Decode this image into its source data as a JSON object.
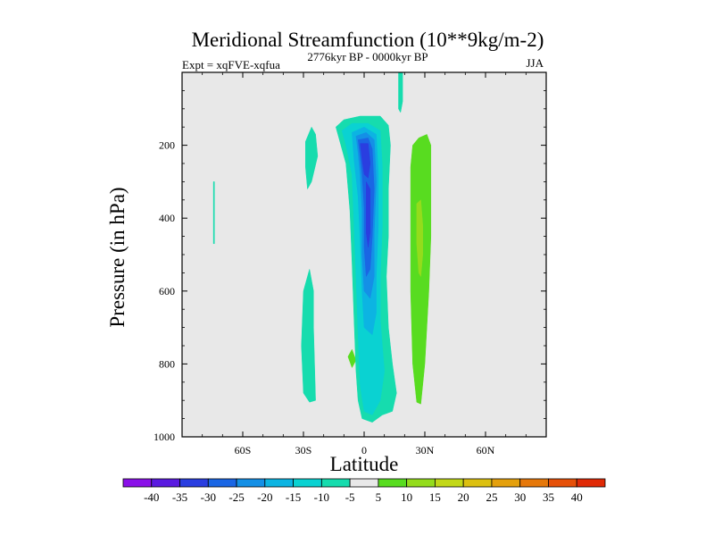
{
  "chart_data": {
    "type": "contour",
    "title": "Meridional Streamfunction (10**9kg/m-2)",
    "left_string": "Expt = xqFVE-xqfua",
    "center_string": "2776kyr BP - 0000kyr BP",
    "right_string": "JJA",
    "xlabel": "Latitude",
    "ylabel": "Pressure (in hPa)",
    "x_range": [
      -90,
      90
    ],
    "y_range": [
      0,
      1000
    ],
    "y_reversed": true,
    "x_ticks": [
      {
        "value": -60,
        "label": "60S"
      },
      {
        "value": -30,
        "label": "30S"
      },
      {
        "value": 0,
        "label": "0"
      },
      {
        "value": 30,
        "label": "30N"
      },
      {
        "value": 60,
        "label": "60N"
      }
    ],
    "y_ticks": [
      {
        "value": 200,
        "label": "200"
      },
      {
        "value": 400,
        "label": "400"
      },
      {
        "value": 600,
        "label": "600"
      },
      {
        "value": 800,
        "label": "800"
      },
      {
        "value": 1000,
        "label": "1000"
      }
    ],
    "background_color": "#e8e8e8",
    "colorbar": {
      "levels": [
        "-40",
        "-35",
        "-30",
        "-25",
        "-20",
        "-15",
        "-10",
        "-5",
        "5",
        "10",
        "15",
        "20",
        "25",
        "30",
        "35",
        "40"
      ],
      "colors": [
        "#8a10e8",
        "#5a1ae0",
        "#2a3ee0",
        "#1a66e4",
        "#1490e6",
        "#0cb4e2",
        "#0ad2d2",
        "#16dcae",
        "#e8e8e8",
        "#58dc20",
        "#94dc1c",
        "#c2d818",
        "#dcc010",
        "#e4a00c",
        "#e6780a",
        "#e65008",
        "#e02a06"
      ]
    },
    "regions": [
      {
        "name": "contour-vertical-streak-65s",
        "color": "#16dcae",
        "points": [
          [
            -74.5,
            300
          ],
          [
            -74,
            300
          ],
          [
            -74,
            470
          ],
          [
            -74.5,
            470
          ]
        ]
      },
      {
        "name": "contour-upper-patch-27s",
        "color": "#16dcae",
        "points": [
          [
            -29,
            190
          ],
          [
            -26,
            150
          ],
          [
            -24,
            170
          ],
          [
            -23,
            230
          ],
          [
            -26,
            300
          ],
          [
            -28,
            320
          ],
          [
            -29,
            260
          ]
        ]
      },
      {
        "name": "contour-lower-patch-28s",
        "color": "#16dcae",
        "points": [
          [
            -30,
            600
          ],
          [
            -27,
            540
          ],
          [
            -25,
            600
          ],
          [
            -25,
            700
          ],
          [
            -24,
            900
          ],
          [
            -27,
            905
          ],
          [
            -30,
            880
          ],
          [
            -31,
            750
          ]
        ]
      },
      {
        "name": "contour-small-patch-5s",
        "color": "#58dc20",
        "points": [
          [
            -8,
            780
          ],
          [
            -6,
            760
          ],
          [
            -4,
            790
          ],
          [
            -6,
            810
          ]
        ]
      },
      {
        "name": "contour-outer-tropics",
        "color": "#16dcae",
        "points": [
          [
            -14,
            150
          ],
          [
            -10,
            130
          ],
          [
            -2,
            120
          ],
          [
            8,
            120
          ],
          [
            12,
            145
          ],
          [
            13,
            200
          ],
          [
            12,
            320
          ],
          [
            12,
            450
          ],
          [
            11,
            560
          ],
          [
            12,
            700
          ],
          [
            14,
            800
          ],
          [
            16,
            880
          ],
          [
            14,
            930
          ],
          [
            9,
            940
          ],
          [
            4,
            960
          ],
          [
            -1,
            950
          ],
          [
            -3,
            900
          ],
          [
            -4,
            820
          ],
          [
            -5,
            680
          ],
          [
            -6,
            520
          ],
          [
            -7,
            380
          ],
          [
            -9,
            250
          ]
        ]
      },
      {
        "name": "contour-tropics-10",
        "color": "#0ad2d2",
        "points": [
          [
            -11,
            160
          ],
          [
            -6,
            140
          ],
          [
            2,
            140
          ],
          [
            8,
            160
          ],
          [
            9,
            260
          ],
          [
            9,
            420
          ],
          [
            8,
            560
          ],
          [
            8,
            680
          ],
          [
            10,
            820
          ],
          [
            8,
            900
          ],
          [
            4,
            940
          ],
          [
            0,
            930
          ],
          [
            -2,
            860
          ],
          [
            -3,
            720
          ],
          [
            -4,
            560
          ],
          [
            -5,
            420
          ],
          [
            -6,
            280
          ],
          [
            -9,
            200
          ]
        ]
      },
      {
        "name": "contour-tropics-15",
        "color": "#0cb4e2",
        "points": [
          [
            -6,
            165
          ],
          [
            0,
            150
          ],
          [
            6,
            170
          ],
          [
            7,
            280
          ],
          [
            7,
            420
          ],
          [
            6,
            560
          ],
          [
            6,
            660
          ],
          [
            4,
            720
          ],
          [
            0,
            700
          ],
          [
            -1,
            600
          ],
          [
            -2,
            460
          ],
          [
            -3,
            340
          ],
          [
            -5,
            240
          ]
        ]
      },
      {
        "name": "contour-tropics-20",
        "color": "#1490e6",
        "points": [
          [
            -4,
            175
          ],
          [
            1,
            165
          ],
          [
            5,
            185
          ],
          [
            6,
            300
          ],
          [
            5,
            440
          ],
          [
            5,
            560
          ],
          [
            3,
            620
          ],
          [
            0,
            600
          ],
          [
            -1,
            500
          ],
          [
            -1,
            380
          ],
          [
            -2,
            280
          ],
          [
            -3,
            220
          ]
        ]
      },
      {
        "name": "contour-tropics-25",
        "color": "#1a66e4",
        "points": [
          [
            -3,
            185
          ],
          [
            2,
            180
          ],
          [
            4,
            210
          ],
          [
            5,
            320
          ],
          [
            4,
            450
          ],
          [
            3,
            540
          ],
          [
            1,
            560
          ],
          [
            0,
            480
          ],
          [
            0,
            370
          ],
          [
            -1,
            280
          ],
          [
            -2,
            230
          ]
        ]
      },
      {
        "name": "contour-tropics-30",
        "color": "#2a3ee0",
        "points": [
          [
            -2,
            195
          ],
          [
            2,
            195
          ],
          [
            3,
            250
          ],
          [
            2,
            290
          ],
          [
            0,
            280
          ],
          [
            -1,
            240
          ]
        ]
      },
      {
        "name": "contour-core-min-30",
        "color": "#2a3ee0",
        "points": [
          [
            1,
            300
          ],
          [
            3,
            320
          ],
          [
            3,
            440
          ],
          [
            2,
            480
          ],
          [
            1,
            440
          ],
          [
            1,
            360
          ]
        ]
      },
      {
        "name": "contour-top-streak-15n",
        "color": "#16dcae",
        "points": [
          [
            17,
            0
          ],
          [
            19,
            0
          ],
          [
            19,
            80
          ],
          [
            18,
            110
          ],
          [
            17,
            100
          ]
        ]
      },
      {
        "name": "contour-green-band-27n",
        "color": "#58dc20",
        "points": [
          [
            24,
            200
          ],
          [
            27,
            180
          ],
          [
            31,
            170
          ],
          [
            33,
            200
          ],
          [
            33,
            300
          ],
          [
            33,
            450
          ],
          [
            32,
            600
          ],
          [
            30,
            800
          ],
          [
            28,
            910
          ],
          [
            26,
            905
          ],
          [
            24,
            800
          ],
          [
            23,
            600
          ],
          [
            23,
            400
          ],
          [
            23,
            260
          ]
        ]
      },
      {
        "name": "contour-green-core-27n",
        "color": "#94dc1c",
        "points": [
          [
            26,
            360
          ],
          [
            28,
            350
          ],
          [
            29,
            420
          ],
          [
            29,
            500
          ],
          [
            28,
            560
          ],
          [
            27,
            550
          ],
          [
            26,
            470
          ]
        ]
      }
    ]
  }
}
